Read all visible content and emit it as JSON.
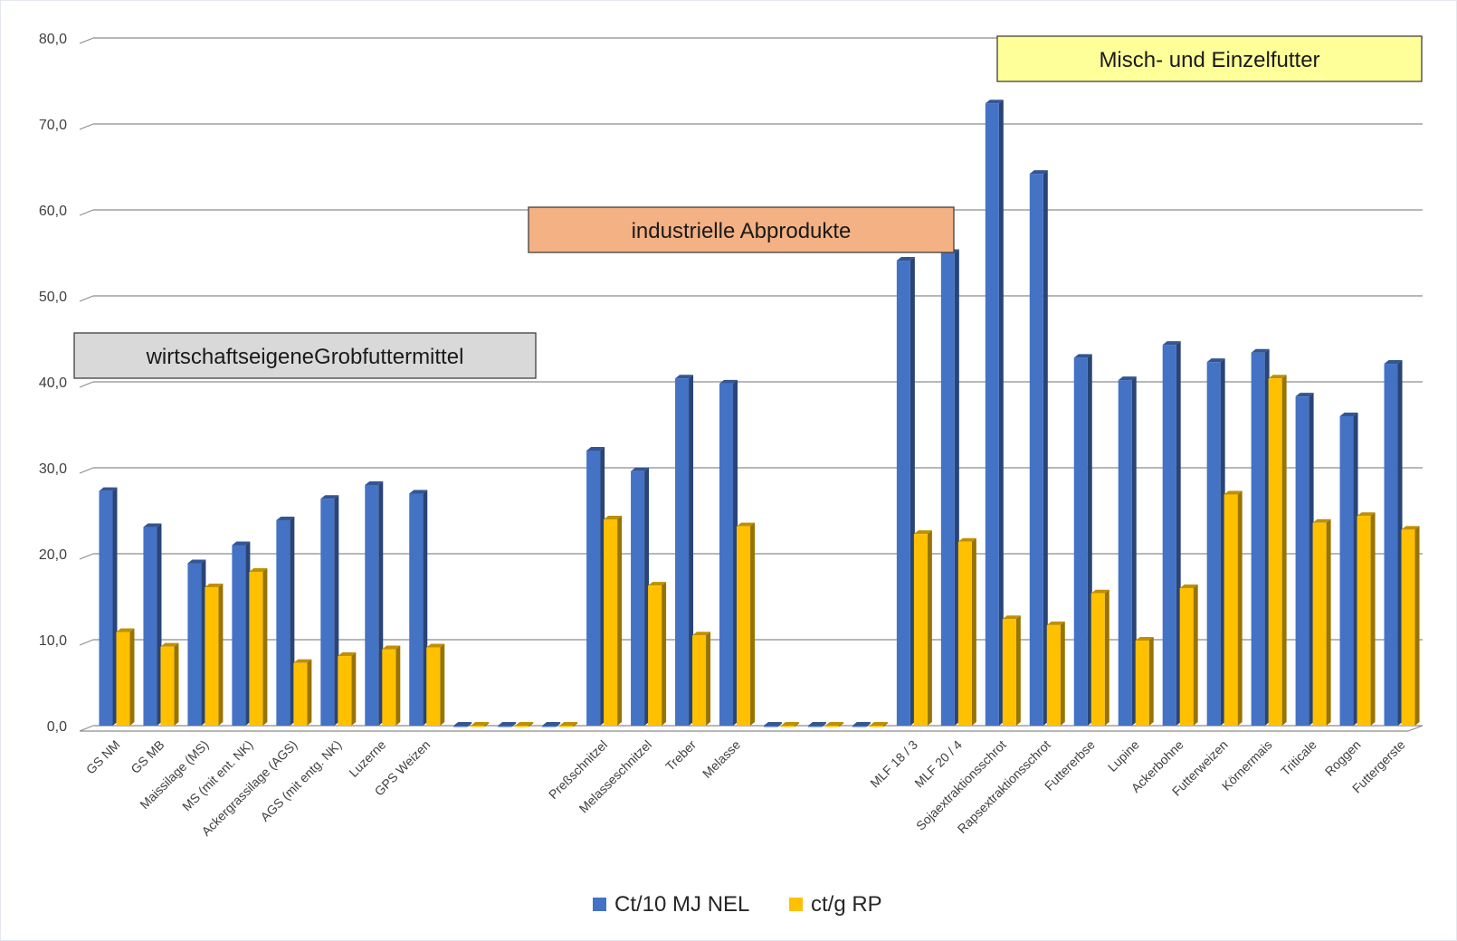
{
  "chart_data": {
    "type": "bar",
    "ylim": [
      0,
      80
    ],
    "yticks": [
      "0,0",
      "10,0",
      "20,0",
      "30,0",
      "40,0",
      "50,0",
      "60,0",
      "70,0",
      "80,0"
    ],
    "grid": true,
    "legend_position": "bottom",
    "categories": [
      "GS NM",
      "GS MB",
      "Maissilage (MS)",
      "MS (mit ent. NK)",
      "Ackergrassilage (AGS)",
      "AGS (mit entg. NK)",
      "Luzerne",
      "GPS Weizen",
      "",
      "",
      "",
      "Preßschnitzel",
      "Melasseschnitzel",
      "Treber",
      "Melasse",
      "",
      "",
      "",
      "MLF 18 / 3",
      "MLF 20 / 4",
      "Sojaextraktionsschrot",
      "Rapsextraktionsschrot",
      "Futtererbse",
      "Lupine",
      "Ackerbohne",
      "Futterweizen",
      "Körnermais",
      "Triticale",
      "Roggen",
      "Futtergerste"
    ],
    "series": [
      {
        "name": "Ct/10 MJ NEL",
        "color": "#4472c4",
        "values": [
          27.3,
          23.1,
          18.9,
          21.0,
          23.9,
          26.4,
          28.0,
          27.0,
          0,
          0,
          0,
          32.0,
          29.6,
          40.4,
          39.8,
          0,
          0,
          0,
          54.1,
          55.0,
          72.4,
          64.2,
          42.8,
          40.2,
          44.3,
          42.3,
          43.4,
          38.3,
          36.0,
          42.1
        ]
      },
      {
        "name": "ct/g RP",
        "color": "#ffc000",
        "values": [
          10.9,
          9.2,
          16.1,
          17.9,
          7.3,
          8.1,
          8.9,
          9.1,
          0,
          0,
          0,
          24.0,
          16.3,
          10.5,
          23.2,
          0,
          0,
          0,
          22.3,
          21.4,
          12.4,
          11.7,
          15.4,
          9.9,
          16.0,
          26.9,
          40.4,
          23.6,
          24.4,
          22.8
        ]
      }
    ],
    "annotations": [
      {
        "text": "wirtschaftseigeneGrobfuttermittel",
        "color": "#d9d9d9"
      },
      {
        "text": "industrielle Abprodukte",
        "color": "#f4b183"
      },
      {
        "text": "Misch- und Einzelfutter",
        "color": "#ffff99"
      }
    ]
  }
}
